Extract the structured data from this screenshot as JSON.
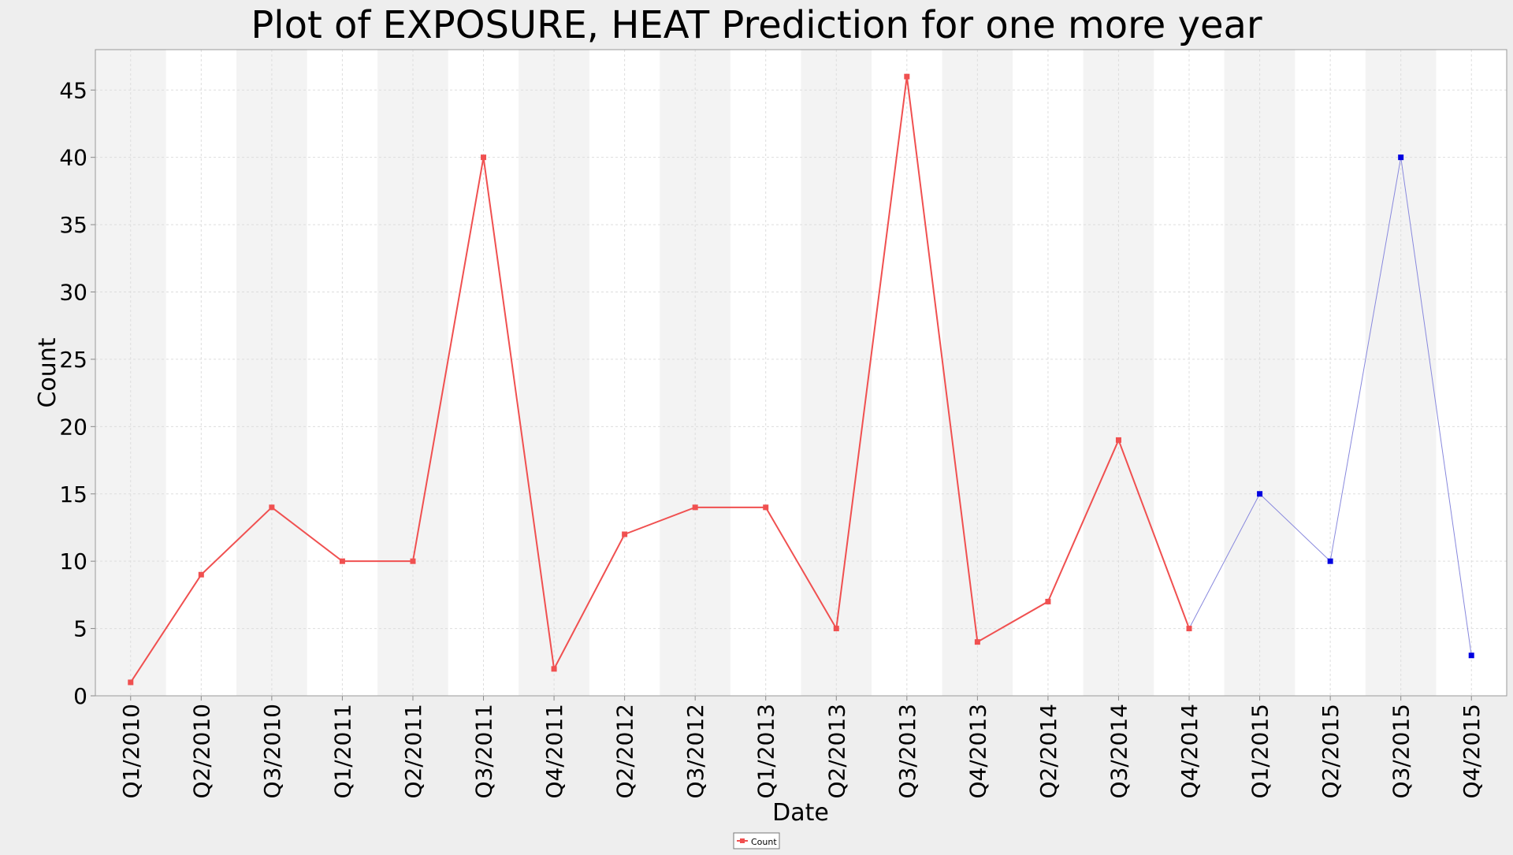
{
  "chart_data": {
    "type": "line",
    "title": "Plot of EXPOSURE, HEAT Prediction for one more year",
    "xlabel": "Date",
    "ylabel": "Count",
    "ylim": [
      0,
      48
    ],
    "yticks": [
      0,
      5,
      10,
      15,
      20,
      25,
      30,
      35,
      40,
      45
    ],
    "grid": true,
    "legend_position": "bottom-center",
    "categories": [
      "Q1/2010",
      "Q2/2010",
      "Q3/2010",
      "Q1/2011",
      "Q2/2011",
      "Q3/2011",
      "Q4/2011",
      "Q2/2012",
      "Q3/2012",
      "Q1/2013",
      "Q2/2013",
      "Q3/2013",
      "Q4/2013",
      "Q2/2014",
      "Q3/2014",
      "Q4/2014",
      "Q1/2015",
      "Q2/2015",
      "Q3/2015",
      "Q4/2015"
    ],
    "series": [
      {
        "name": "Count",
        "color": "#f05050",
        "values": [
          1,
          9,
          14,
          10,
          10,
          40,
          2,
          12,
          14,
          14,
          5,
          46,
          4,
          7,
          19,
          5,
          null,
          null,
          null,
          null
        ]
      },
      {
        "color": "#0000e0",
        "line_color": "#8888dd",
        "values": [
          null,
          null,
          null,
          null,
          null,
          null,
          null,
          null,
          null,
          null,
          null,
          null,
          null,
          null,
          null,
          5,
          15,
          10,
          40,
          3
        ]
      }
    ]
  }
}
